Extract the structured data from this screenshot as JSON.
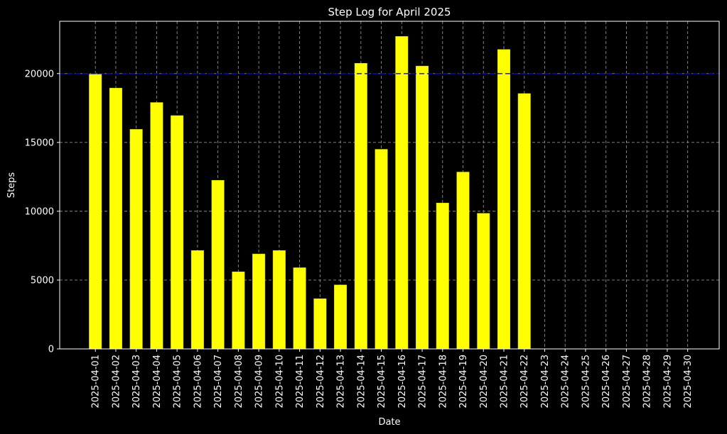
{
  "chart_data": {
    "type": "bar",
    "title": "Step Log for April 2025",
    "xlabel": "Date",
    "ylabel": "Steps",
    "categories": [
      "2025-04-01",
      "2025-04-02",
      "2025-04-03",
      "2025-04-04",
      "2025-04-05",
      "2025-04-06",
      "2025-04-07",
      "2025-04-08",
      "2025-04-09",
      "2025-04-10",
      "2025-04-11",
      "2025-04-12",
      "2025-04-13",
      "2025-04-14",
      "2025-04-15",
      "2025-04-16",
      "2025-04-17",
      "2025-04-18",
      "2025-04-19",
      "2025-04-20",
      "2025-04-21",
      "2025-04-22",
      "2025-04-23",
      "2025-04-24",
      "2025-04-25",
      "2025-04-26",
      "2025-04-27",
      "2025-04-28",
      "2025-04-29",
      "2025-04-30"
    ],
    "values": [
      19950,
      18950,
      15950,
      17900,
      16950,
      7150,
      12250,
      5600,
      6900,
      7150,
      5900,
      3650,
      4650,
      20750,
      14500,
      22700,
      20550,
      10600,
      12850,
      9850,
      21750,
      18550,
      null,
      null,
      null,
      null,
      null,
      null,
      null,
      null
    ],
    "ylim": [
      0,
      23800
    ],
    "yticks": [
      0,
      5000,
      10000,
      15000,
      20000
    ],
    "reference_line": {
      "value": 20000
    },
    "grid": true,
    "colors": {
      "background": "#000000",
      "bar": "#ffff00",
      "bar_edge": "#d4d400",
      "grid": "#8c8c8c",
      "axis": "#ffffff",
      "reference_line": "#0000ff"
    }
  }
}
